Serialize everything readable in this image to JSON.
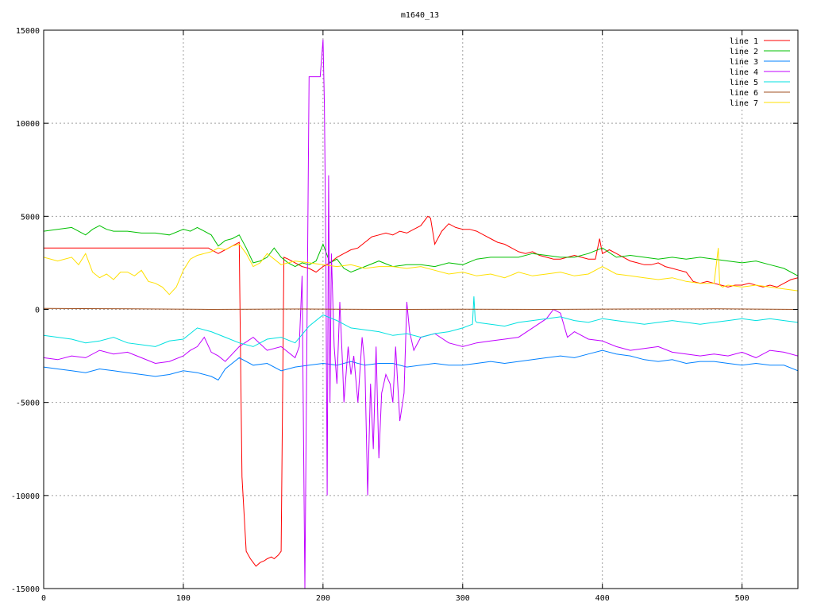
{
  "chart_data": {
    "type": "line",
    "title": "m1640_13",
    "xlabel": "",
    "ylabel": "",
    "xlim": [
      0,
      540
    ],
    "ylim": [
      -15000,
      15000
    ],
    "xticks": [
      0,
      100,
      200,
      300,
      400,
      500
    ],
    "yticks": [
      -15000,
      -10000,
      -5000,
      0,
      5000,
      10000,
      15000
    ],
    "grid": true,
    "legend_position": "top-right",
    "series": [
      {
        "name": "line 1",
        "color": "#ff0000",
        "x": [
          0,
          118,
          120,
          125,
          130,
          135,
          140,
          142,
          145,
          148,
          150,
          152,
          155,
          158,
          160,
          163,
          165,
          168,
          170,
          172,
          175,
          180,
          185,
          190,
          195,
          200,
          205,
          210,
          215,
          220,
          225,
          230,
          235,
          240,
          245,
          250,
          255,
          260,
          265,
          270,
          275,
          277,
          280,
          285,
          290,
          295,
          300,
          305,
          310,
          315,
          320,
          325,
          330,
          335,
          340,
          345,
          350,
          355,
          360,
          365,
          370,
          375,
          380,
          385,
          390,
          395,
          398,
          400,
          405,
          410,
          415,
          420,
          425,
          430,
          435,
          440,
          445,
          450,
          455,
          460,
          465,
          470,
          475,
          480,
          485,
          490,
          495,
          500,
          505,
          510,
          515,
          520,
          525,
          530,
          535,
          540
        ],
        "y": [
          3300,
          3300,
          3200,
          3000,
          3200,
          3400,
          3600,
          -9000,
          -13000,
          -13400,
          -13600,
          -13800,
          -13600,
          -13500,
          -13400,
          -13300,
          -13400,
          -13200,
          -13000,
          2800,
          2700,
          2500,
          2300,
          2200,
          2000,
          2300,
          2500,
          2800,
          3000,
          3200,
          3300,
          3600,
          3900,
          4000,
          4100,
          4000,
          4200,
          4100,
          4300,
          4500,
          5000,
          4900,
          3500,
          4200,
          4600,
          4400,
          4300,
          4300,
          4200,
          4000,
          3800,
          3600,
          3500,
          3300,
          3100,
          3000,
          3100,
          2900,
          2800,
          2700,
          2700,
          2800,
          2900,
          2800,
          2700,
          2700,
          3800,
          3000,
          3200,
          3000,
          2800,
          2600,
          2500,
          2400,
          2400,
          2500,
          2300,
          2200,
          2100,
          2000,
          1500,
          1400,
          1500,
          1400,
          1300,
          1200,
          1300,
          1300,
          1400,
          1300,
          1200,
          1300,
          1200,
          1400,
          1600,
          1700
        ]
      },
      {
        "name": "line 2",
        "color": "#00c000",
        "x": [
          0,
          10,
          20,
          30,
          35,
          40,
          45,
          50,
          60,
          70,
          80,
          90,
          100,
          105,
          110,
          120,
          125,
          130,
          135,
          140,
          145,
          150,
          155,
          160,
          165,
          170,
          175,
          180,
          185,
          190,
          195,
          200,
          205,
          210,
          215,
          220,
          230,
          240,
          250,
          260,
          270,
          280,
          290,
          300,
          310,
          320,
          330,
          340,
          350,
          360,
          370,
          380,
          390,
          400,
          410,
          420,
          430,
          440,
          450,
          460,
          470,
          480,
          490,
          500,
          510,
          520,
          530,
          540
        ],
        "y": [
          4200,
          4300,
          4400,
          4000,
          4300,
          4500,
          4300,
          4200,
          4200,
          4100,
          4100,
          4000,
          4300,
          4200,
          4400,
          4000,
          3400,
          3700,
          3800,
          4000,
          3300,
          2500,
          2600,
          2800,
          3300,
          2800,
          2500,
          2300,
          2500,
          2400,
          2600,
          3500,
          2500,
          2700,
          2200,
          2000,
          2300,
          2600,
          2300,
          2400,
          2400,
          2300,
          2500,
          2400,
          2700,
          2800,
          2800,
          2800,
          3000,
          2900,
          2800,
          2800,
          3000,
          3300,
          2800,
          2900,
          2800,
          2700,
          2800,
          2700,
          2800,
          2700,
          2600,
          2500,
          2600,
          2400,
          2200,
          1800
        ]
      },
      {
        "name": "line 3",
        "color": "#0080ff",
        "x": [
          0,
          10,
          20,
          30,
          40,
          50,
          60,
          70,
          80,
          90,
          100,
          110,
          120,
          125,
          130,
          140,
          150,
          160,
          170,
          180,
          190,
          200,
          210,
          220,
          230,
          240,
          250,
          260,
          270,
          280,
          290,
          300,
          310,
          320,
          330,
          340,
          350,
          360,
          370,
          380,
          390,
          400,
          410,
          420,
          430,
          440,
          450,
          460,
          470,
          480,
          490,
          500,
          510,
          520,
          530,
          540
        ],
        "y": [
          -3100,
          -3200,
          -3300,
          -3400,
          -3200,
          -3300,
          -3400,
          -3500,
          -3600,
          -3500,
          -3300,
          -3400,
          -3600,
          -3800,
          -3200,
          -2600,
          -3000,
          -2900,
          -3300,
          -3100,
          -3000,
          -2900,
          -3000,
          -2800,
          -3000,
          -2900,
          -2900,
          -3100,
          -3000,
          -2900,
          -3000,
          -3000,
          -2900,
          -2800,
          -2900,
          -2800,
          -2700,
          -2600,
          -2500,
          -2600,
          -2400,
          -2200,
          -2400,
          -2500,
          -2700,
          -2800,
          -2700,
          -2900,
          -2800,
          -2800,
          -2900,
          -3000,
          -2900,
          -3000,
          -3000,
          -3300
        ]
      },
      {
        "name": "line 4",
        "color": "#c000ff",
        "x": [
          0,
          10,
          20,
          30,
          40,
          50,
          60,
          70,
          80,
          90,
          100,
          105,
          110,
          115,
          120,
          125,
          130,
          140,
          150,
          160,
          170,
          180,
          183,
          185,
          187,
          188,
          190,
          192,
          195,
          197,
          198,
          200,
          201,
          202,
          203,
          204,
          205,
          206,
          208,
          210,
          212,
          214,
          215,
          218,
          220,
          222,
          225,
          228,
          230,
          232,
          234,
          236,
          238,
          240,
          242,
          245,
          248,
          250,
          252,
          255,
          258,
          260,
          262,
          265,
          270,
          280,
          290,
          300,
          310,
          320,
          330,
          340,
          350,
          360,
          365,
          370,
          375,
          380,
          390,
          400,
          410,
          420,
          430,
          440,
          450,
          460,
          470,
          480,
          490,
          500,
          510,
          520,
          530,
          540
        ],
        "y": [
          -2600,
          -2700,
          -2500,
          -2600,
          -2200,
          -2400,
          -2300,
          -2600,
          -2900,
          -2800,
          -2500,
          -2200,
          -2000,
          -1500,
          -2300,
          -2500,
          -2800,
          -2000,
          -1500,
          -2200,
          -2000,
          -2600,
          -2000,
          1800,
          -15000,
          -6000,
          12500,
          12500,
          12500,
          12500,
          12500,
          14500,
          11000,
          3000,
          -10000,
          7200,
          -5000,
          3000,
          -2000,
          -4000,
          400,
          -3000,
          -5000,
          -2000,
          -3500,
          -2500,
          -5000,
          -1500,
          -3000,
          -10000,
          -4000,
          -7500,
          -2000,
          -8000,
          -4500,
          -3500,
          -4000,
          -5000,
          -2000,
          -6000,
          -4500,
          400,
          -1200,
          -2200,
          -1500,
          -1300,
          -1800,
          -2000,
          -1800,
          -1700,
          -1600,
          -1500,
          -1000,
          -500,
          0,
          -200,
          -1500,
          -1200,
          -1600,
          -1700,
          -2000,
          -2200,
          -2100,
          -2000,
          -2300,
          -2400,
          -2500,
          -2400,
          -2500,
          -2300,
          -2600,
          -2200,
          -2300,
          -2500
        ]
      },
      {
        "name": "line 5",
        "color": "#00e0e0",
        "x": [
          0,
          10,
          20,
          30,
          40,
          50,
          60,
          70,
          80,
          90,
          100,
          110,
          120,
          130,
          140,
          150,
          160,
          170,
          180,
          190,
          200,
          210,
          220,
          230,
          240,
          250,
          260,
          270,
          280,
          290,
          300,
          307,
          308,
          309,
          310,
          320,
          330,
          340,
          350,
          360,
          370,
          380,
          390,
          400,
          410,
          420,
          430,
          440,
          450,
          460,
          470,
          480,
          490,
          500,
          510,
          520,
          530,
          540
        ],
        "y": [
          -1400,
          -1500,
          -1600,
          -1800,
          -1700,
          -1500,
          -1800,
          -1900,
          -2000,
          -1700,
          -1600,
          -1000,
          -1200,
          -1500,
          -1800,
          -2000,
          -1600,
          -1500,
          -1800,
          -900,
          -300,
          -600,
          -1000,
          -1100,
          -1200,
          -1400,
          -1300,
          -1500,
          -1300,
          -1200,
          -1000,
          -800,
          700,
          -600,
          -700,
          -800,
          -900,
          -700,
          -600,
          -500,
          -400,
          -600,
          -700,
          -500,
          -600,
          -700,
          -800,
          -700,
          -600,
          -700,
          -800,
          -700,
          -600,
          -500,
          -600,
          -500,
          -600,
          -700
        ]
      },
      {
        "name": "line 6",
        "color": "#a05020",
        "x": [
          0,
          60,
          120,
          180,
          240,
          300,
          360,
          420,
          480,
          540
        ],
        "y": [
          50,
          30,
          0,
          20,
          0,
          10,
          0,
          20,
          30,
          0
        ]
      },
      {
        "name": "line 7",
        "color": "#ffe000",
        "x": [
          0,
          10,
          20,
          25,
          30,
          35,
          40,
          45,
          50,
          55,
          60,
          65,
          70,
          75,
          80,
          85,
          90,
          95,
          100,
          105,
          110,
          115,
          120,
          125,
          130,
          135,
          140,
          145,
          150,
          155,
          160,
          165,
          170,
          175,
          180,
          190,
          200,
          210,
          220,
          230,
          240,
          250,
          260,
          270,
          280,
          290,
          300,
          310,
          320,
          330,
          340,
          350,
          360,
          370,
          380,
          390,
          400,
          410,
          420,
          430,
          440,
          450,
          460,
          470,
          480,
          483,
          484,
          486,
          490,
          500,
          510,
          520,
          530,
          540
        ],
        "y": [
          2800,
          2600,
          2800,
          2400,
          3000,
          2000,
          1700,
          1900,
          1600,
          2000,
          2000,
          1800,
          2100,
          1500,
          1400,
          1200,
          800,
          1200,
          2100,
          2700,
          2900,
          3000,
          3100,
          3300,
          3200,
          3400,
          3500,
          3000,
          2300,
          2500,
          3000,
          2700,
          2400,
          2500,
          2600,
          2500,
          2400,
          2300,
          2400,
          2200,
          2300,
          2300,
          2200,
          2300,
          2100,
          1900,
          2000,
          1800,
          1900,
          1700,
          2000,
          1800,
          1900,
          2000,
          1800,
          1900,
          2300,
          1900,
          1800,
          1700,
          1600,
          1700,
          1500,
          1400,
          1400,
          3300,
          1300,
          1200,
          1300,
          1200,
          1300,
          1200,
          1100,
          1000
        ]
      }
    ]
  }
}
